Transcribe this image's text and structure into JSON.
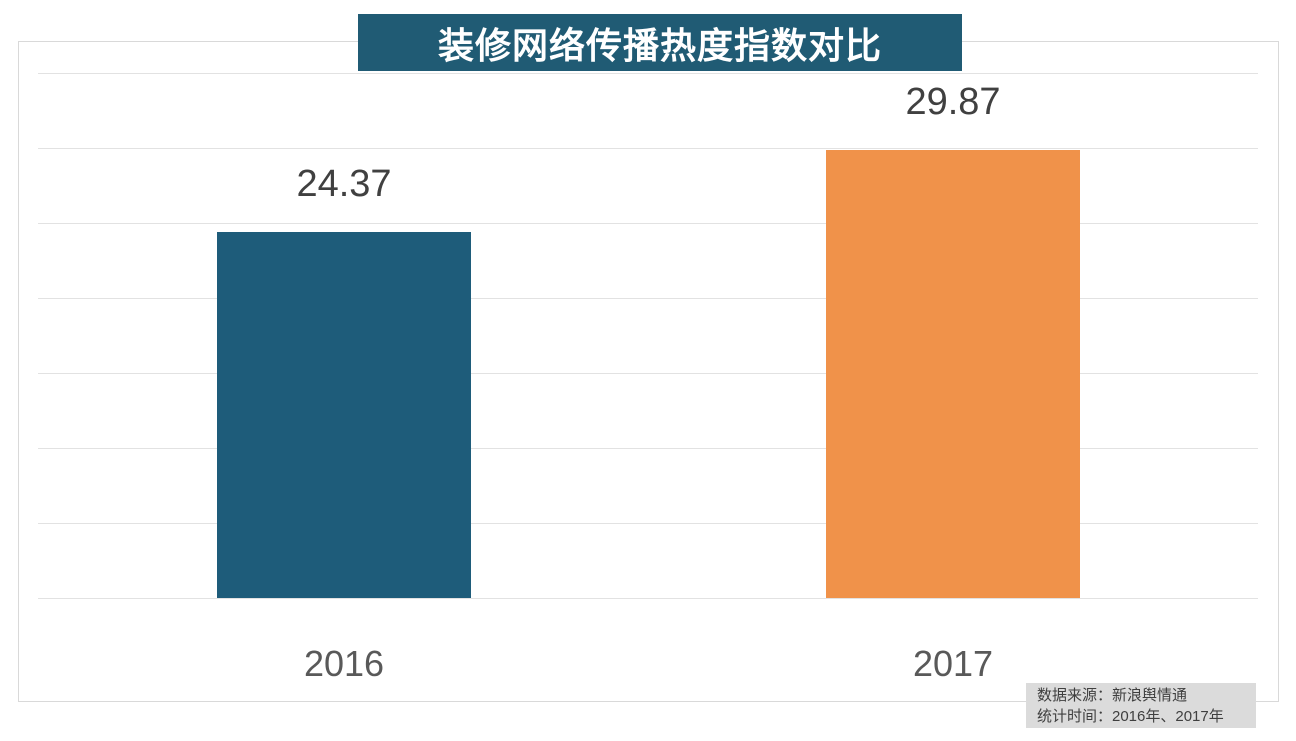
{
  "title": "装修网络传播热度指数对比",
  "chart_data": {
    "type": "bar",
    "title": "装修网络传播热度指数对比",
    "categories": [
      "2016",
      "2017"
    ],
    "values": [
      24.37,
      29.87
    ],
    "value_labels": [
      "24.37",
      "29.87"
    ],
    "bar_colors": [
      "#1e5c7a",
      "#f0924a"
    ],
    "xlabel": "",
    "ylabel": "",
    "ylim": [
      0,
      35
    ],
    "gridline_step": 5,
    "grid": true,
    "legend_position": "none"
  },
  "footer": {
    "source_line": "数据来源：新浪舆情通",
    "time_line": "统计时间：2016年、2017年"
  },
  "colors": {
    "banner_bg": "#205b74",
    "bar_2016": "#1e5c7a",
    "bar_2017": "#f0924a",
    "gridline": "#e2e2e2",
    "card_border": "#d9d9d9",
    "footer_bg": "#dbdbdb"
  }
}
